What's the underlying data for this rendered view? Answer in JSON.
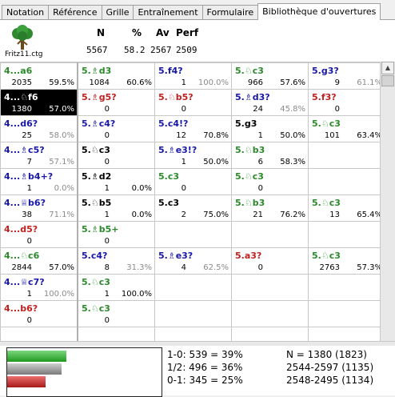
{
  "tabs": [
    "Notation",
    "Référence",
    "Grille",
    "Entraînement",
    "Formulaire",
    "Bibliothèque d'ouvertures"
  ],
  "active_tab": 5,
  "header": {
    "database": "Fritz11.ctg",
    "labels": [
      "N",
      "%",
      "Av",
      "Perf"
    ],
    "values": [
      "5567",
      "58.2",
      "2567",
      "2509"
    ]
  },
  "grid": [
    [
      {
        "move": "4...a6",
        "count": "2035",
        "pct": "59.5%",
        "color": "green"
      },
      {
        "move": "5.♗d3",
        "count": "1084",
        "pct": "60.6%",
        "color": "green"
      },
      {
        "move": "5.f4?",
        "count": "1",
        "pct": "100.0%",
        "color": "blue",
        "grey": true
      },
      {
        "move": "5.♘c3",
        "count": "966",
        "pct": "57.6%",
        "color": "green"
      },
      {
        "move": "5.g3?",
        "count": "9",
        "pct": "61.1%",
        "color": "blue",
        "grey": true
      }
    ],
    [
      {
        "move": "4...♘f6",
        "count": "1380",
        "pct": "57.0%",
        "color": "white",
        "selected": true
      },
      {
        "move": "5.♗g5?",
        "count": "0",
        "pct": "",
        "color": "red"
      },
      {
        "move": "5.♘b5?",
        "count": "0",
        "pct": "",
        "color": "red"
      },
      {
        "move": "5.♗d3?",
        "count": "24",
        "pct": "45.8%",
        "color": "blue",
        "grey": true
      },
      {
        "move": "5.f3?",
        "count": "0",
        "pct": "",
        "color": "red"
      }
    ],
    [
      {
        "move": "4...d6?",
        "count": "25",
        "pct": "58.0%",
        "color": "blue",
        "grey": true
      },
      {
        "move": "5.♗c4?",
        "count": "0",
        "pct": "",
        "color": "blue"
      },
      {
        "move": "5.c4!?",
        "count": "12",
        "pct": "70.8%",
        "color": "blue"
      },
      {
        "move": "5.g3",
        "count": "1",
        "pct": "50.0%",
        "color": "black"
      },
      {
        "move": "5.♘c3",
        "count": "101",
        "pct": "63.4%",
        "color": "green"
      }
    ],
    [
      {
        "move": "4...♗c5?",
        "count": "7",
        "pct": "57.1%",
        "color": "blue",
        "grey": true
      },
      {
        "move": "5.♘c3",
        "count": "0",
        "pct": "",
        "color": "black"
      },
      {
        "move": "5.♗e3!?",
        "count": "1",
        "pct": "50.0%",
        "color": "blue"
      },
      {
        "move": "5.♘b3",
        "count": "6",
        "pct": "58.3%",
        "color": "green"
      },
      {
        "move": "",
        "count": "",
        "pct": "",
        "color": "black"
      }
    ],
    [
      {
        "move": "4...♗b4+?",
        "count": "1",
        "pct": "0.0%",
        "color": "blue",
        "grey": true
      },
      {
        "move": "5.♗d2",
        "count": "1",
        "pct": "0.0%",
        "color": "black"
      },
      {
        "move": "5.c3",
        "count": "0",
        "pct": "",
        "color": "green"
      },
      {
        "move": "5.♘c3",
        "count": "0",
        "pct": "",
        "color": "green"
      },
      {
        "move": "",
        "count": "",
        "pct": "",
        "color": "black"
      }
    ],
    [
      {
        "move": "4...♕b6?",
        "count": "38",
        "pct": "71.1%",
        "color": "blue",
        "grey": true
      },
      {
        "move": "5.♘b5",
        "count": "1",
        "pct": "0.0%",
        "color": "black"
      },
      {
        "move": "5.c3",
        "count": "2",
        "pct": "75.0%",
        "color": "black"
      },
      {
        "move": "5.♘b3",
        "count": "21",
        "pct": "76.2%",
        "color": "green"
      },
      {
        "move": "5.♘c3",
        "count": "13",
        "pct": "65.4%",
        "color": "green"
      }
    ],
    [
      {
        "move": "4...d5?",
        "count": "0",
        "pct": "",
        "color": "red"
      },
      {
        "move": "5.♗b5+",
        "count": "0",
        "pct": "",
        "color": "green"
      },
      {
        "move": "",
        "count": "",
        "pct": "",
        "color": "black"
      },
      {
        "move": "",
        "count": "",
        "pct": "",
        "color": "black"
      },
      {
        "move": "",
        "count": "",
        "pct": "",
        "color": "black"
      }
    ],
    [
      {
        "move": "4...♘c6",
        "count": "2844",
        "pct": "57.0%",
        "color": "green"
      },
      {
        "move": "5.c4?",
        "count": "8",
        "pct": "31.3%",
        "color": "blue",
        "grey": true
      },
      {
        "move": "5.♗e3?",
        "count": "4",
        "pct": "62.5%",
        "color": "blue",
        "grey": true
      },
      {
        "move": "5.a3?",
        "count": "0",
        "pct": "",
        "color": "red"
      },
      {
        "move": "5.♘c3",
        "count": "2763",
        "pct": "57.3%",
        "color": "green"
      }
    ],
    [
      {
        "move": "4...♕c7?",
        "count": "1",
        "pct": "100.0%",
        "color": "blue",
        "grey": true
      },
      {
        "move": "5.♘c3",
        "count": "1",
        "pct": "100.0%",
        "color": "green"
      },
      {
        "move": "",
        "count": "",
        "pct": "",
        "color": "black"
      },
      {
        "move": "",
        "count": "",
        "pct": "",
        "color": "black"
      },
      {
        "move": "",
        "count": "",
        "pct": "",
        "color": "black"
      }
    ],
    [
      {
        "move": "4...b6?",
        "count": "0",
        "pct": "",
        "color": "red"
      },
      {
        "move": "5.♘c3",
        "count": "0",
        "pct": "",
        "color": "green"
      },
      {
        "move": "",
        "count": "",
        "pct": "",
        "color": "black"
      },
      {
        "move": "",
        "count": "",
        "pct": "",
        "color": "black"
      },
      {
        "move": "",
        "count": "",
        "pct": "",
        "color": "black"
      }
    ],
    [
      {
        "move": "",
        "count": "",
        "pct": "",
        "color": "black"
      },
      {
        "move": "",
        "count": "",
        "pct": "",
        "color": "black"
      },
      {
        "move": "",
        "count": "",
        "pct": "",
        "color": "black"
      },
      {
        "move": "",
        "count": "",
        "pct": "",
        "color": "black"
      },
      {
        "move": "",
        "count": "",
        "pct": "",
        "color": "black"
      }
    ]
  ],
  "stats": {
    "results": [
      {
        "label": "1-0: 539 = 39%",
        "fraction": 0.39
      },
      {
        "label": "1/2: 496 = 36%",
        "fraction": 0.36
      },
      {
        "label": "0-1: 345 = 25%",
        "fraction": 0.25
      }
    ],
    "right": [
      "N = 1380 (1823)",
      "2544-2597 (1135)",
      "2548-2495 (1134)"
    ]
  },
  "colors": {
    "green": "#2a8a2a",
    "blue": "#1818a8",
    "red": "#c02020"
  }
}
